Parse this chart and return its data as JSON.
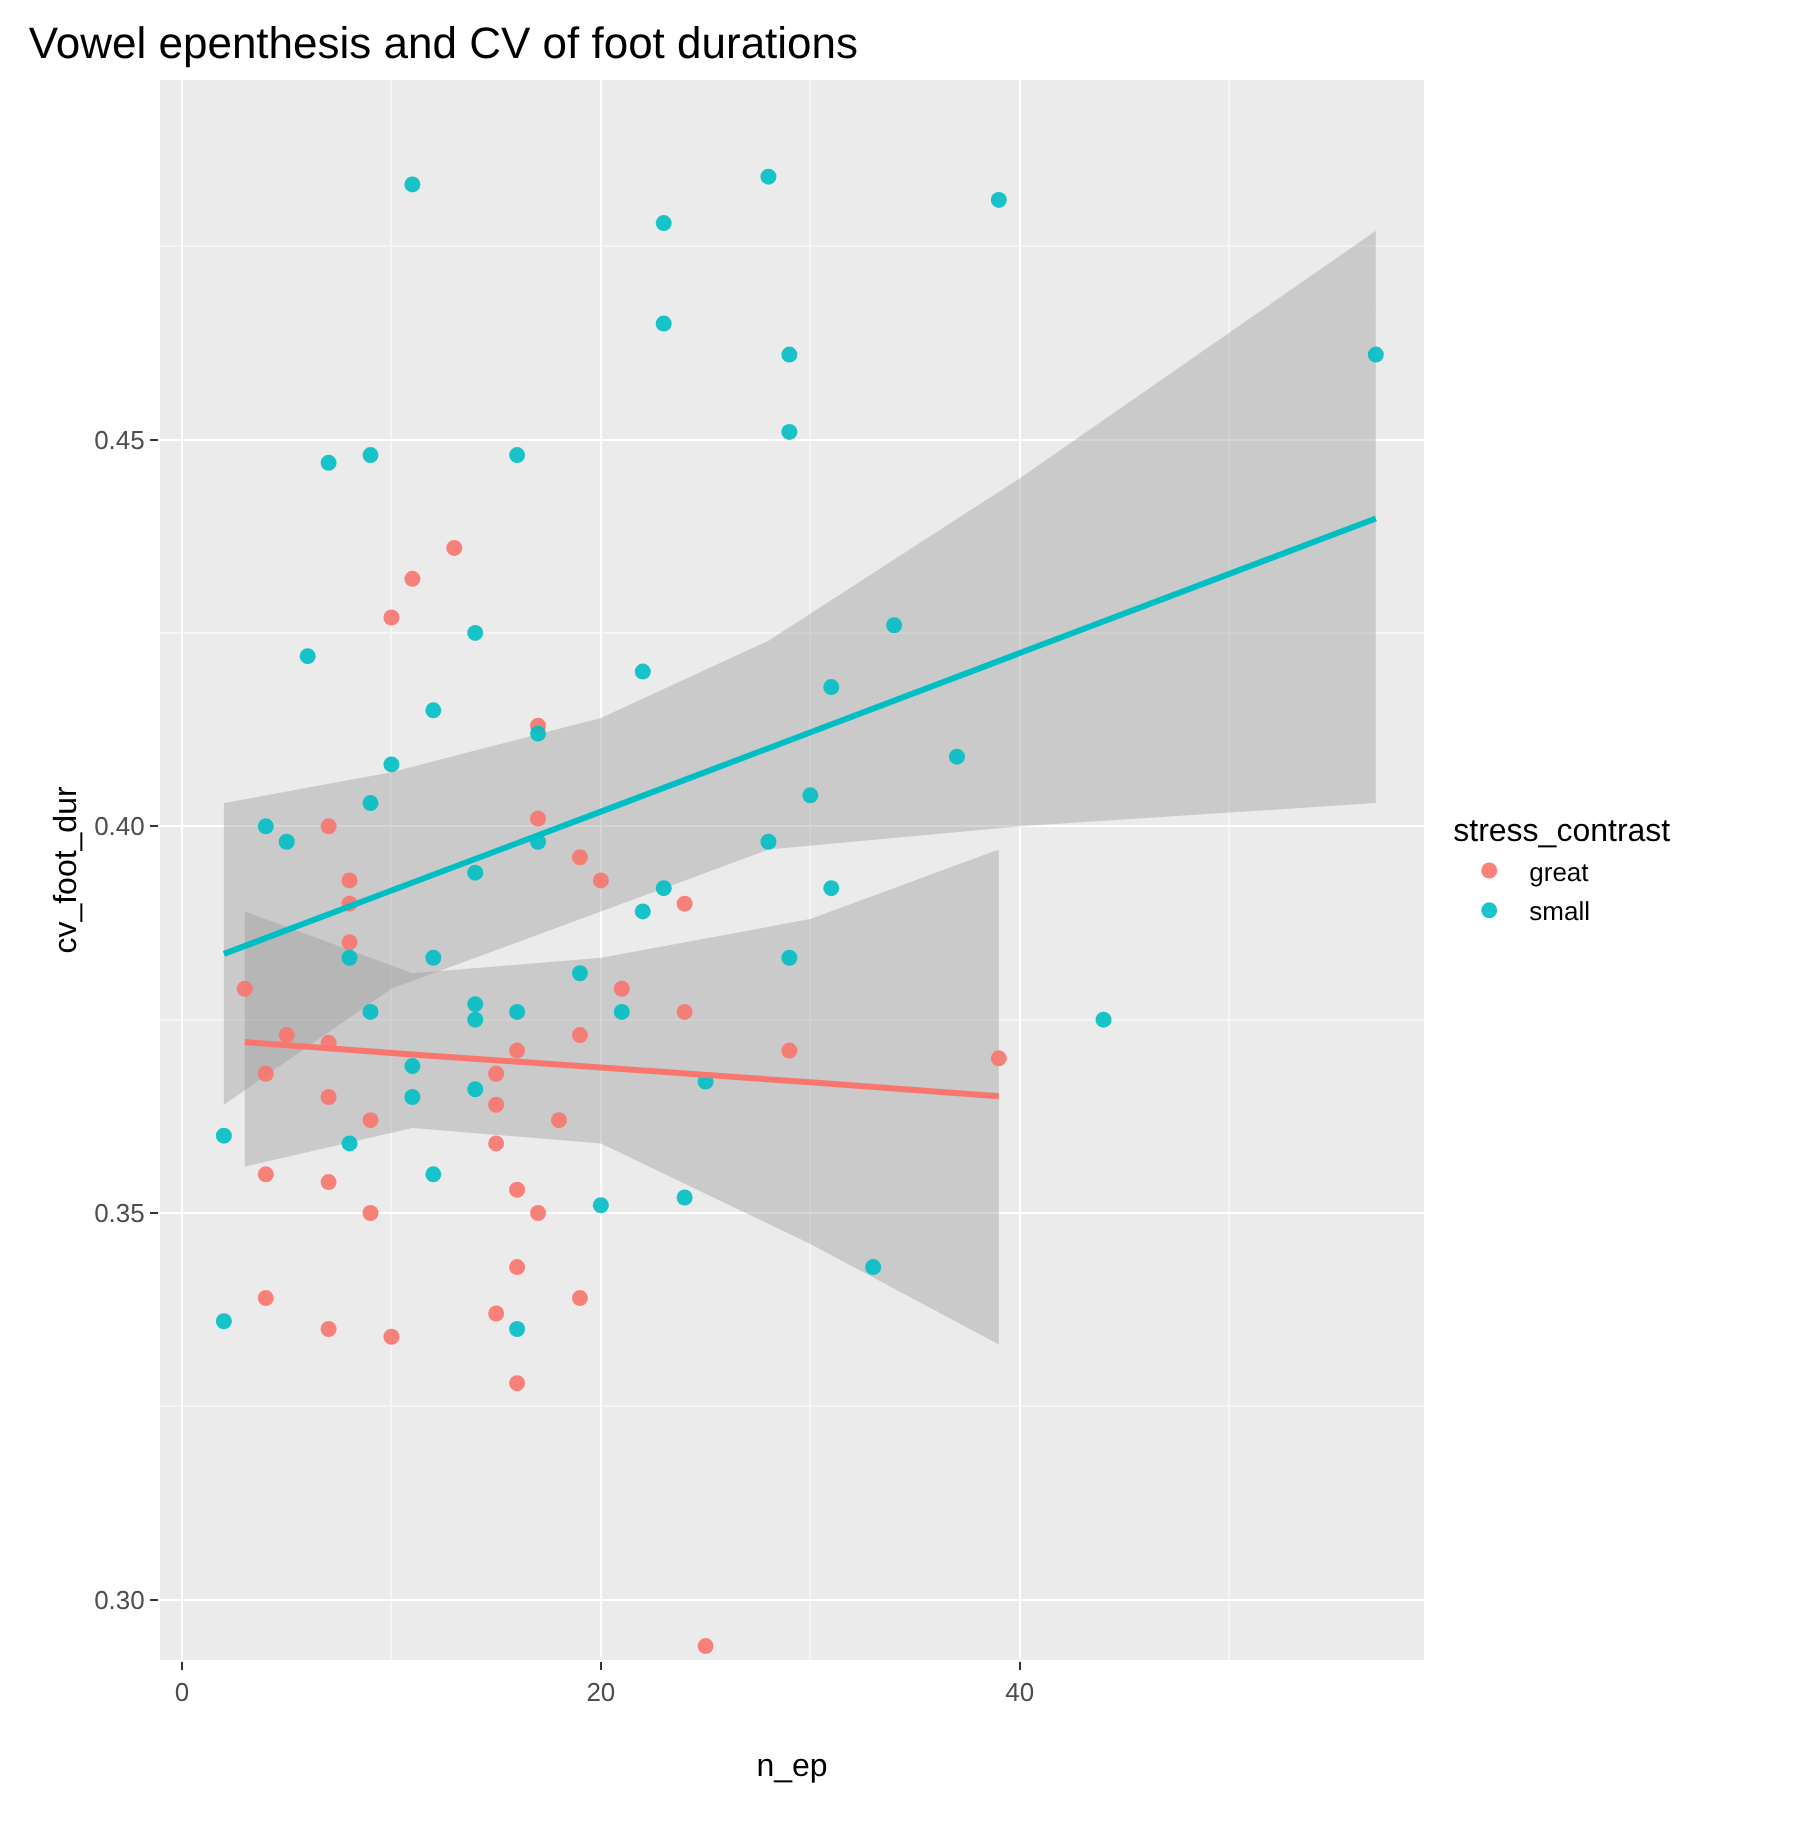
{
  "chart_data": {
    "type": "scatter",
    "title": "Vowel epenthesis and CV of foot durations",
    "xlabel": "n_ep",
    "ylabel": "cv_foot_dur",
    "legend_title": "stress_contrast",
    "xlim": [
      -1.05,
      59.3
    ],
    "xticks": [
      0,
      20,
      40
    ],
    "ylim": [
      0.2922,
      0.4965
    ],
    "yticks": [
      {
        "value": 0.3,
        "label": "0.30"
      },
      0.35,
      {
        "value": 0.4,
        "label": "0.40"
      },
      0.45
    ],
    "grid": true,
    "legend": "right",
    "marker": "circle",
    "series": [
      {
        "name": "great",
        "color": "#f8766d",
        "x": [
          13,
          11,
          10,
          17,
          7,
          17,
          19,
          20,
          8,
          8,
          8,
          24,
          3,
          5,
          7,
          4,
          7,
          9,
          15,
          15,
          16,
          18,
          19,
          21,
          24,
          29,
          4,
          7,
          9,
          15,
          16,
          17,
          16,
          19,
          15,
          4,
          7,
          10,
          16,
          25,
          39
        ],
        "values": [
          0.436,
          0.432,
          0.427,
          0.413,
          0.4,
          0.401,
          0.396,
          0.393,
          0.393,
          0.39,
          0.385,
          0.39,
          0.379,
          0.373,
          0.372,
          0.368,
          0.365,
          0.362,
          0.368,
          0.364,
          0.371,
          0.362,
          0.373,
          0.379,
          0.376,
          0.371,
          0.355,
          0.354,
          0.35,
          0.359,
          0.353,
          0.35,
          0.343,
          0.339,
          0.337,
          0.339,
          0.335,
          0.334,
          0.328,
          0.294,
          0.37
        ]
      },
      {
        "name": "small",
        "color": "#00bfc4",
        "x": [
          11,
          23,
          28,
          39,
          23,
          29,
          57,
          29,
          7,
          9,
          16,
          6,
          14,
          12,
          22,
          34,
          31,
          10,
          17,
          9,
          37,
          30,
          4,
          5,
          17,
          28,
          14,
          23,
          31,
          22,
          8,
          12,
          19,
          29,
          9,
          14,
          14,
          16,
          21,
          11,
          11,
          14,
          25,
          2,
          8,
          12,
          20,
          24,
          2,
          16,
          44,
          33
        ],
        "values": [
          0.483,
          0.478,
          0.484,
          0.481,
          0.465,
          0.461,
          0.461,
          0.451,
          0.447,
          0.448,
          0.448,
          0.422,
          0.425,
          0.415,
          0.42,
          0.426,
          0.418,
          0.408,
          0.412,
          0.403,
          0.409,
          0.404,
          0.4,
          0.398,
          0.398,
          0.398,
          0.394,
          0.392,
          0.392,
          0.389,
          0.383,
          0.383,
          0.381,
          0.383,
          0.376,
          0.377,
          0.375,
          0.376,
          0.376,
          0.369,
          0.365,
          0.366,
          0.367,
          0.36,
          0.359,
          0.355,
          0.351,
          0.352,
          0.336,
          0.335,
          0.375,
          0.343
        ]
      },
      {
        "color": "#00bfc4",
        "type": "line",
        "marker": "none",
        "x": [
          2,
          10,
          20,
          28,
          40,
          57
        ],
        "values": [
          0.3835,
          0.3917,
          0.4019,
          0.4101,
          0.4224,
          0.4398
        ],
        "lower": [
          0.364,
          0.379,
          0.389,
          0.397,
          0.4,
          0.403
        ],
        "upper": [
          0.403,
          0.407,
          0.414,
          0.424,
          0.445,
          0.477
        ]
      },
      {
        "color": "#f8766d",
        "type": "line",
        "marker": "none",
        "x": [
          3,
          11,
          20,
          30,
          39
        ],
        "values": [
          0.3721,
          0.3705,
          0.3688,
          0.3669,
          0.3651
        ],
        "lower": [
          0.356,
          0.361,
          0.359,
          0.346,
          0.333
        ],
        "upper": [
          0.389,
          0.381,
          0.383,
          0.388,
          0.397
        ]
      }
    ]
  }
}
